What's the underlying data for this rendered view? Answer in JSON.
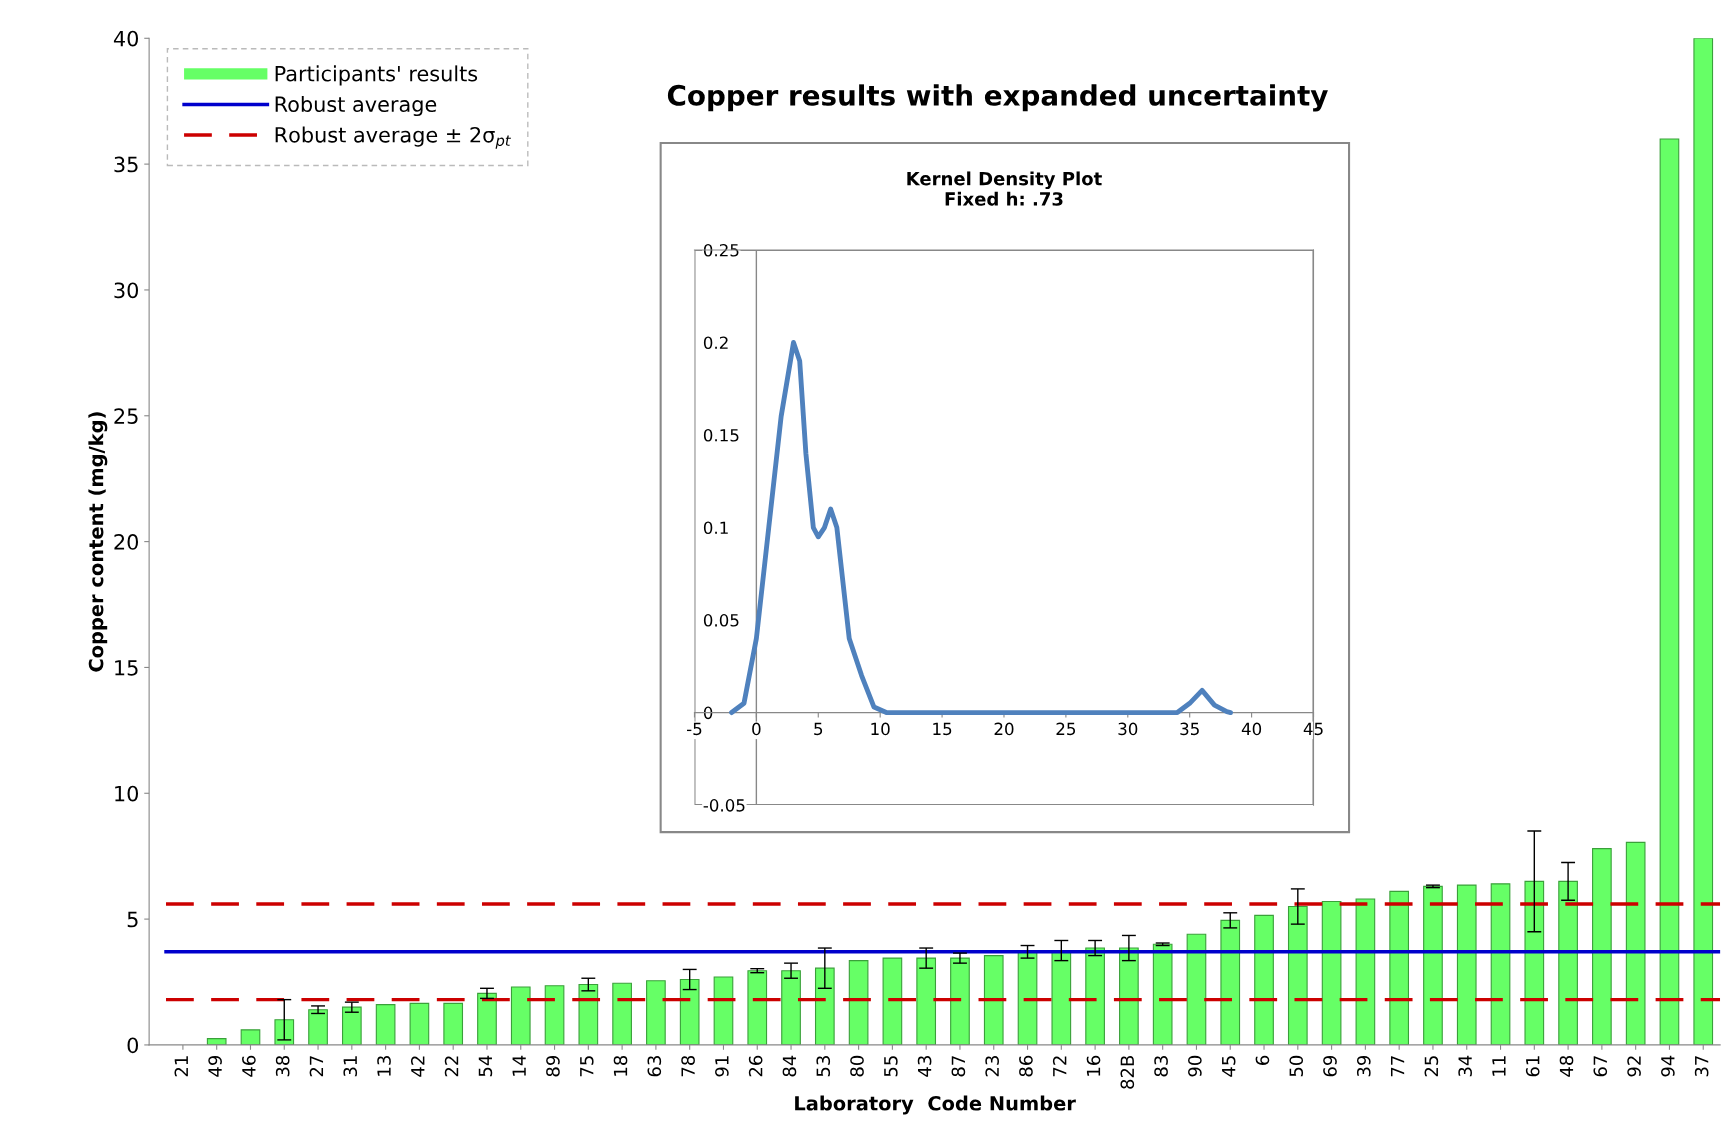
{
  "chart_data": [
    {
      "type": "bar",
      "title": "Copper results with expanded uncertainty",
      "xlabel": "Laboratory  Code Number",
      "ylabel": "Copper content (mg/kg)",
      "categories": [
        "21",
        "49",
        "46",
        "38",
        "27",
        "31",
        "13",
        "42",
        "22",
        "54",
        "14",
        "89",
        "75",
        "18",
        "63",
        "78",
        "91",
        "26",
        "84",
        "53",
        "80",
        "55",
        "43",
        "87",
        "23",
        "86",
        "72",
        "16",
        "82B",
        "83",
        "90",
        "45",
        "6",
        "50",
        "69",
        "39",
        "77",
        "25",
        "34",
        "11",
        "61",
        "48",
        "67",
        "92",
        "94",
        "37"
      ],
      "series": [
        {
          "name": "Participants' results",
          "color": "#66ff66",
          "values": [
            null,
            0.25,
            0.6,
            1.0,
            1.4,
            1.5,
            1.6,
            1.65,
            1.65,
            2.05,
            2.3,
            2.35,
            2.4,
            2.45,
            2.55,
            2.6,
            2.7,
            2.95,
            2.95,
            3.05,
            3.35,
            3.45,
            3.45,
            3.45,
            3.55,
            3.7,
            3.75,
            3.85,
            3.85,
            4.0,
            4.4,
            4.95,
            5.15,
            5.5,
            5.7,
            5.8,
            6.1,
            6.3,
            6.35,
            6.4,
            6.5,
            6.5,
            7.8,
            8.05,
            36,
            40
          ],
          "errors": [
            null,
            null,
            null,
            0.8,
            0.15,
            0.2,
            null,
            null,
            null,
            0.2,
            null,
            null,
            0.25,
            null,
            null,
            0.4,
            null,
            0.08,
            0.3,
            0.8,
            null,
            null,
            0.4,
            0.2,
            null,
            0.25,
            0.4,
            0.3,
            0.5,
            0.05,
            null,
            0.3,
            null,
            0.7,
            null,
            null,
            null,
            0.05,
            null,
            null,
            2.0,
            0.75,
            null,
            null,
            null,
            null
          ]
        }
      ],
      "ref_lines": [
        {
          "axis": "y",
          "value": 3.7,
          "label": "Robust average",
          "color": "#0000cc",
          "line_style": "solid"
        },
        {
          "axis": "y",
          "value": 5.6,
          "label": "Robust average ± 2σ$_{pt}$",
          "color": "#cc0000",
          "line_style": "dashed"
        },
        {
          "axis": "y",
          "value": 1.8,
          "color": "#cc0000",
          "line_style": "dashed"
        }
      ],
      "ylim": [
        0,
        40
      ],
      "yticks": [
        0,
        5,
        10,
        15,
        20,
        25,
        30,
        35,
        40
      ],
      "legend": "top left"
    },
    {
      "type": "line",
      "title": "Kernel Density Plot",
      "subtitle": "Fixed h: .73",
      "series": [
        {
          "color": "#4f81bd",
          "x": [
            -2,
            -1,
            0,
            1,
            2,
            3,
            3.5,
            4,
            4.6,
            5,
            5.5,
            6,
            6.5,
            7,
            7.5,
            8.5,
            9.5,
            10.5,
            20,
            34,
            35,
            36,
            37,
            38,
            38.3
          ],
          "values": [
            0,
            0.005,
            0.04,
            0.1,
            0.16,
            0.2,
            0.19,
            0.14,
            0.1,
            0.095,
            0.1,
            0.11,
            0.1,
            0.07,
            0.04,
            0.02,
            0.003,
            0,
            0,
            0,
            0.005,
            0.012,
            0.004,
            0.0005,
            0
          ]
        }
      ],
      "xlim": [
        -5,
        45
      ],
      "xticks": [
        -5,
        0,
        5,
        10,
        15,
        20,
        25,
        30,
        35,
        40,
        45
      ],
      "ylim": [
        -0.05,
        0.25
      ],
      "yticks": [
        -0.05,
        0,
        0.05,
        0.1,
        0.15,
        0.2,
        0.25
      ]
    }
  ]
}
